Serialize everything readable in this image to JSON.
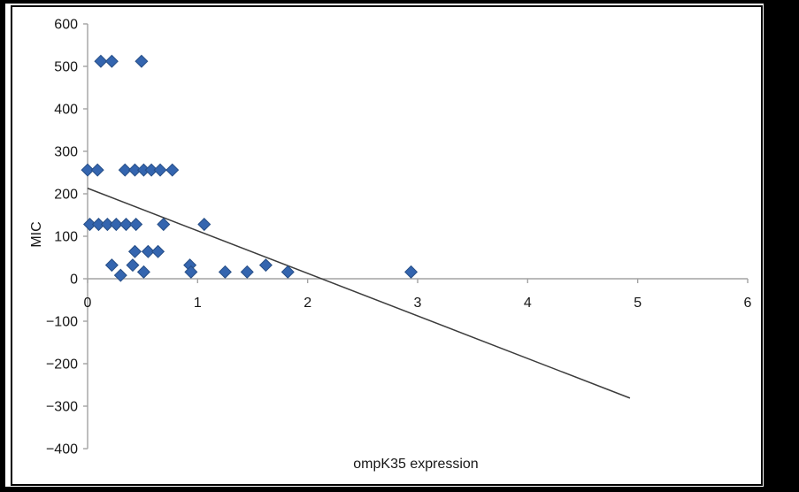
{
  "figure": {
    "background": "#ffffff",
    "frame_color": "#000000",
    "axis_color": "#a3a3a3"
  },
  "chart_data": {
    "type": "scatter",
    "title": "",
    "xlabel": "ompK35 expression",
    "ylabel": "MIC",
    "xlim": [
      0,
      6
    ],
    "ylim": [
      -400,
      600
    ],
    "x_ticks": [
      0,
      1,
      2,
      3,
      4,
      5,
      6
    ],
    "y_ticks": [
      600,
      500,
      400,
      300,
      200,
      100,
      0,
      -100,
      -200,
      -300,
      -400
    ],
    "grid": false,
    "legend": "none",
    "marker": {
      "shape": "diamond",
      "fill": "#3465af",
      "stroke": "#274e86",
      "half_size_px": 6.8
    },
    "points": [
      [
        0.12,
        512
      ],
      [
        0.22,
        512
      ],
      [
        0.49,
        512
      ],
      [
        0.0,
        256
      ],
      [
        0.09,
        256
      ],
      [
        0.34,
        256
      ],
      [
        0.43,
        256
      ],
      [
        0.51,
        256
      ],
      [
        0.58,
        256
      ],
      [
        0.66,
        256
      ],
      [
        0.77,
        256
      ],
      [
        0.02,
        128
      ],
      [
        0.1,
        128
      ],
      [
        0.18,
        128
      ],
      [
        0.26,
        128
      ],
      [
        0.35,
        128
      ],
      [
        0.44,
        128
      ],
      [
        0.69,
        128
      ],
      [
        1.06,
        128
      ],
      [
        0.43,
        64
      ],
      [
        0.55,
        64
      ],
      [
        0.64,
        64
      ],
      [
        0.22,
        32
      ],
      [
        0.41,
        32
      ],
      [
        0.93,
        32
      ],
      [
        1.62,
        32
      ],
      [
        0.3,
        8
      ],
      [
        0.51,
        16
      ],
      [
        0.94,
        16
      ],
      [
        1.25,
        16
      ],
      [
        1.45,
        16
      ],
      [
        1.82,
        16
      ],
      [
        2.94,
        16
      ]
    ],
    "trendline": {
      "x1": 0,
      "y1": 213,
      "x2": 4.93,
      "y2": -281,
      "color": "#3c3c3c"
    }
  }
}
